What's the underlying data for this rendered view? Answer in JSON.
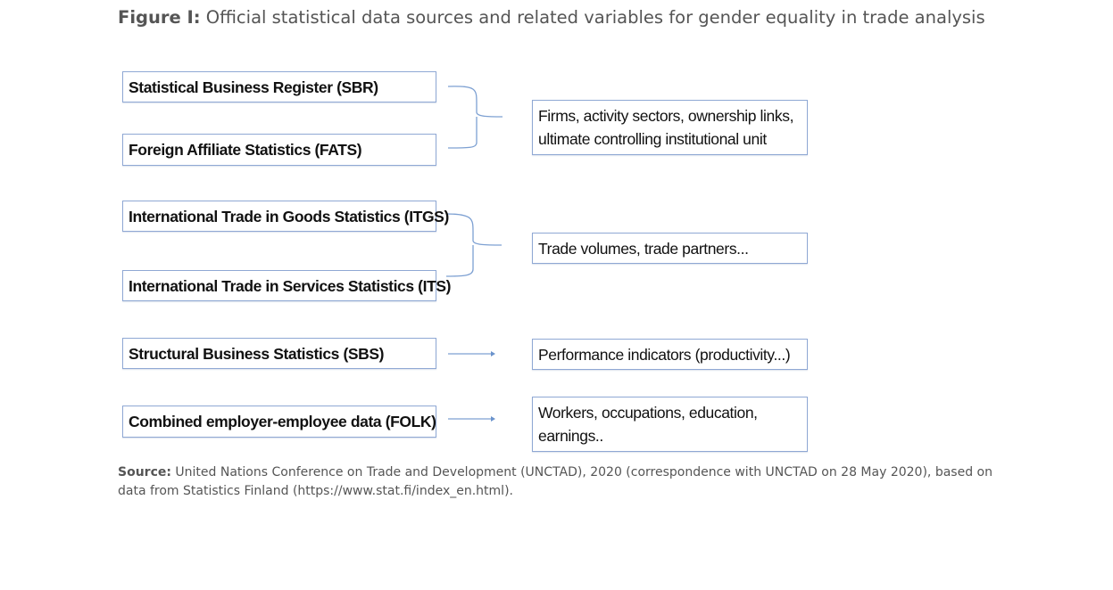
{
  "figure": {
    "label": "Figure I:",
    "title": "Official statistical data sources and related variables for gender equality in trade analysis"
  },
  "sources": [
    {
      "label": "Statistical Business Register (SBR)"
    },
    {
      "label": "Foreign Affiliate Statistics (FATS)"
    },
    {
      "label": "International Trade in Goods Statistics (ITGS)"
    },
    {
      "label": "International Trade in Services Statistics (ITS)"
    },
    {
      "label": "Structural Business Statistics (SBS)"
    },
    {
      "label": "Combined employer-employee data (FOLK)"
    }
  ],
  "variables": [
    {
      "label": "Firms, activity sectors, ownership links, ultimate controlling institutional unit"
    },
    {
      "label": "Trade volumes, trade partners..."
    },
    {
      "label": "Performance indicators (productivity...)"
    },
    {
      "label": "Workers, occupations, education, earnings.."
    }
  ],
  "footnote": {
    "label": "Source:",
    "text": "United Nations Conference on Trade and Development (UNCTAD), 2020 (correspondence with UNCTAD on 28 May 2020), based on data from Statistics Finland (https://www.stat.fi/index_en.html)."
  },
  "colors": {
    "box_border": "#8fa8d4",
    "connector": "#6a93cc"
  }
}
